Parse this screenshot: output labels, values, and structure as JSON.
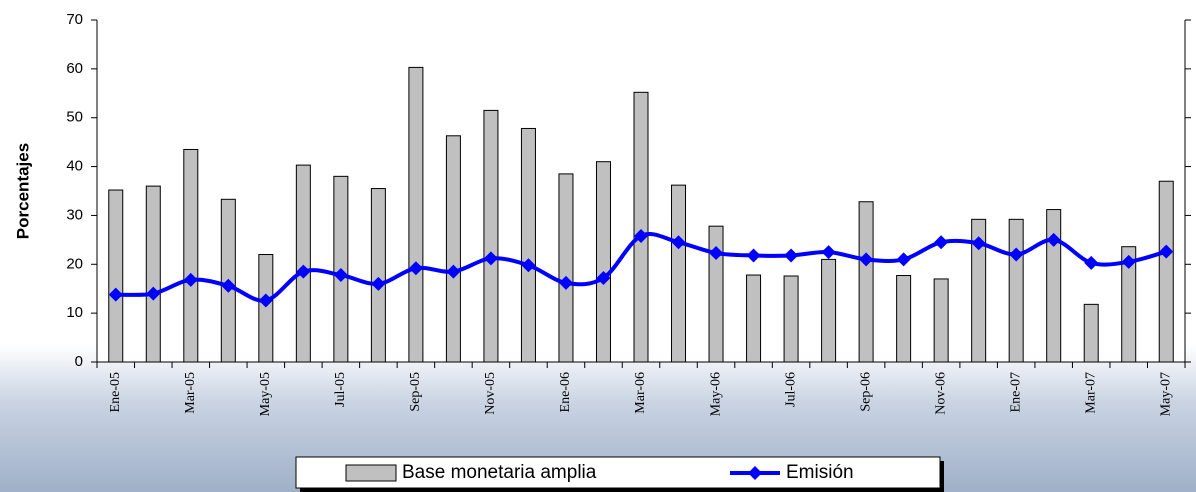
{
  "chart_data": {
    "type": "bar_line",
    "y_label": "Porcentajes",
    "categories": [
      "Ene-05",
      null,
      "Mar-05",
      null,
      "May-05",
      null,
      "Jul-05",
      null,
      "Sep-05",
      null,
      "Nov-05",
      null,
      "Ene-06",
      null,
      "Mar-06",
      null,
      "May-06",
      null,
      "Jul-06",
      null,
      "Sep-06",
      null,
      "Nov-06",
      null,
      "Ene-07",
      null,
      "Mar-07",
      null,
      "May-07"
    ],
    "series": [
      {
        "name": "Base monetaria amplia",
        "kind": "bar",
        "color": "#c0c0c0",
        "values": [
          35.2,
          36,
          43.5,
          33.3,
          22,
          40.3,
          38,
          35.5,
          60.3,
          46.3,
          51.5,
          47.8,
          38.5,
          41,
          55.2,
          36.2,
          27.8,
          17.8,
          17.6,
          21,
          32.8,
          17.7,
          17,
          29.2,
          29.2,
          31.2,
          11.8,
          23.6,
          37
        ]
      },
      {
        "name": "Emisión",
        "kind": "line",
        "color": "#0000ff",
        "values": [
          13.8,
          14,
          16.8,
          15.6,
          12.6,
          18.5,
          17.8,
          16,
          19.2,
          18.5,
          21.2,
          19.8,
          16.2,
          17.2,
          25.8,
          24.5,
          22.3,
          21.8,
          21.8,
          22.5,
          21,
          21,
          24.5,
          24.3,
          22,
          25,
          20.3,
          20.5,
          22.6
        ]
      }
    ],
    "ylim": [
      0,
      70
    ],
    "yticks": [
      0,
      10,
      20,
      30,
      40,
      50,
      60,
      70
    ],
    "legend": "bottom"
  }
}
